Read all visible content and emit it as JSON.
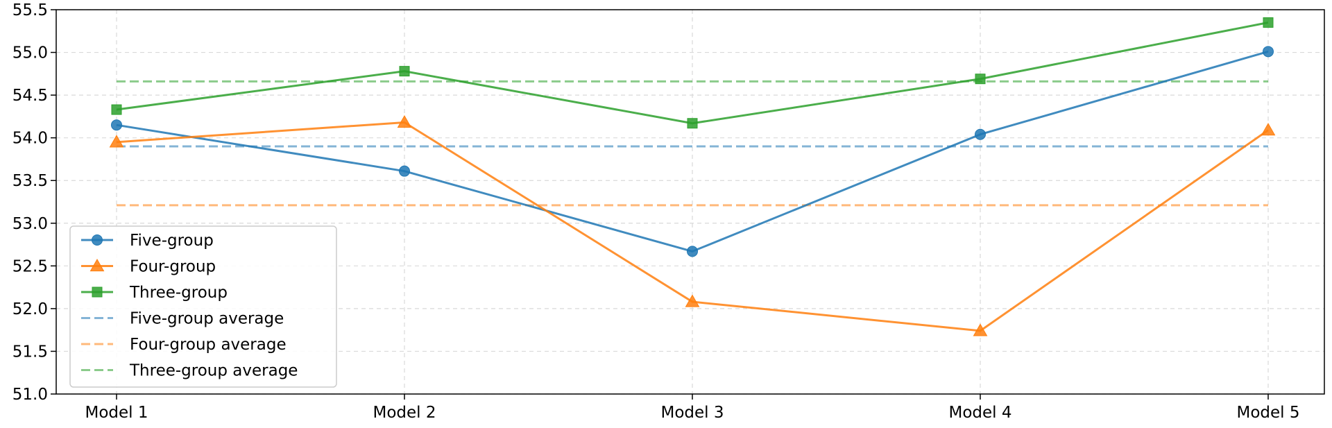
{
  "chart_data": {
    "type": "line",
    "categories": [
      "Model 1",
      "Model 2",
      "Model 3",
      "Model 4",
      "Model 5"
    ],
    "series": [
      {
        "name": "Five-group",
        "values": [
          54.15,
          53.61,
          52.67,
          54.04,
          55.01
        ],
        "color": "#1f77b4",
        "marker": "circle",
        "style": "solid"
      },
      {
        "name": "Four-group",
        "values": [
          53.95,
          54.18,
          52.08,
          51.74,
          54.09
        ],
        "color": "#ff7f0e",
        "marker": "triangle",
        "style": "solid"
      },
      {
        "name": "Three-group",
        "values": [
          54.33,
          54.78,
          54.17,
          54.69,
          55.35
        ],
        "color": "#2ca02c",
        "marker": "square",
        "style": "solid"
      },
      {
        "name": "Five-group average",
        "values": [
          53.9,
          53.9,
          53.9,
          53.9,
          53.9
        ],
        "color": "#1f77b4",
        "marker": "none",
        "style": "dashed"
      },
      {
        "name": "Four-group average",
        "values": [
          53.21,
          53.21,
          53.21,
          53.21,
          53.21
        ],
        "color": "#ff7f0e",
        "marker": "none",
        "style": "dashed"
      },
      {
        "name": "Three-group average",
        "values": [
          54.66,
          54.66,
          54.66,
          54.66,
          54.66
        ],
        "color": "#2ca02c",
        "marker": "none",
        "style": "dashed"
      }
    ],
    "yticks": [
      "51.0",
      "51.5",
      "52.0",
      "52.5",
      "53.0",
      "53.5",
      "54.0",
      "54.5",
      "55.0",
      "55.5"
    ],
    "ylim": [
      51.0,
      55.5
    ],
    "grid": true,
    "legend_position": "lower-left",
    "title": "",
    "xlabel": "",
    "ylabel": ""
  }
}
